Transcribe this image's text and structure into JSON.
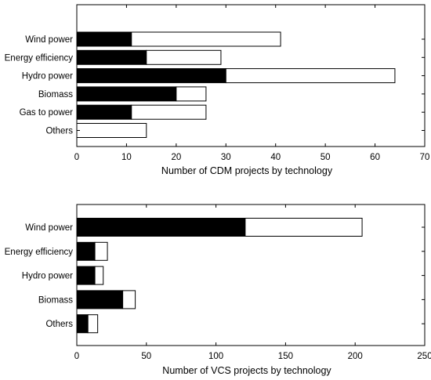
{
  "chart_data": [
    {
      "type": "bar",
      "orientation": "horizontal",
      "stacked": true,
      "categories": [
        "Wind power",
        "Energy efficiency",
        "Hydro power",
        "Biomass",
        "Gas to power",
        "Others"
      ],
      "series": [
        {
          "values": [
            11,
            14,
            30,
            20,
            11,
            0
          ],
          "color": "#000000"
        },
        {
          "values": [
            30,
            15,
            34,
            6,
            15,
            14
          ],
          "color": "#ffffff"
        }
      ],
      "xlabel": "Number of CDM projects by technology",
      "ylabel": "",
      "title": "",
      "xlim": [
        0,
        70
      ],
      "xticks": [
        0,
        10,
        20,
        30,
        40,
        50,
        60,
        70
      ],
      "grid": false
    },
    {
      "type": "bar",
      "orientation": "horizontal",
      "stacked": true,
      "categories": [
        "Wind power",
        "Energy efficiency",
        "Hydro power",
        "Biomass",
        "Others"
      ],
      "series": [
        {
          "values": [
            121,
            13,
            13,
            33,
            8
          ],
          "color": "#000000"
        },
        {
          "values": [
            84,
            9,
            6,
            9,
            7
          ],
          "color": "#ffffff"
        }
      ],
      "xlabel": "Number of VCS projects by technology",
      "ylabel": "",
      "title": "",
      "xlim": [
        0,
        250
      ],
      "xticks": [
        0,
        50,
        100,
        150,
        200,
        250
      ],
      "grid": false
    }
  ]
}
